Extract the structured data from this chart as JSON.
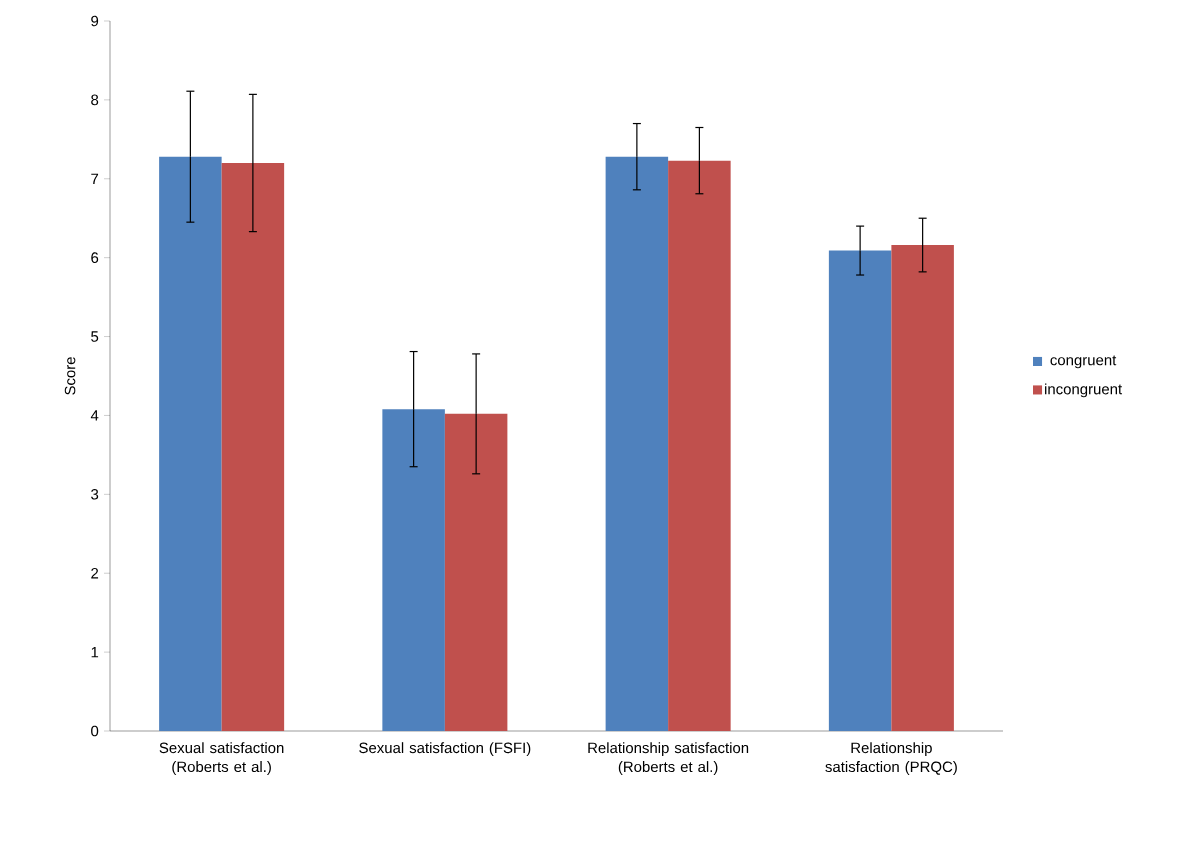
{
  "chart_data": {
    "type": "bar",
    "ylabel": "Score",
    "categories": [
      "Sexual satisfaction (Roberts et al.)",
      "Sexual satisfaction (FSFI)",
      "Relationship satisfaction (Roberts et al.)",
      "Relationship satisfaction (PRQC)"
    ],
    "series": [
      {
        "name": "congruent",
        "color": "#4f81bd",
        "values": [
          7.28,
          4.08,
          7.28,
          6.09
        ],
        "errors": [
          0.83,
          0.73,
          0.42,
          0.31
        ]
      },
      {
        "name": "incongruent",
        "color": "#c0504d",
        "values": [
          7.2,
          4.02,
          7.23,
          6.16
        ],
        "errors": [
          0.87,
          0.76,
          0.42,
          0.34
        ]
      }
    ],
    "ylim": [
      0,
      9
    ],
    "yticks": [
      0,
      1,
      2,
      3,
      4,
      5,
      6,
      7,
      8,
      9
    ],
    "grid": false,
    "legend": "right"
  }
}
